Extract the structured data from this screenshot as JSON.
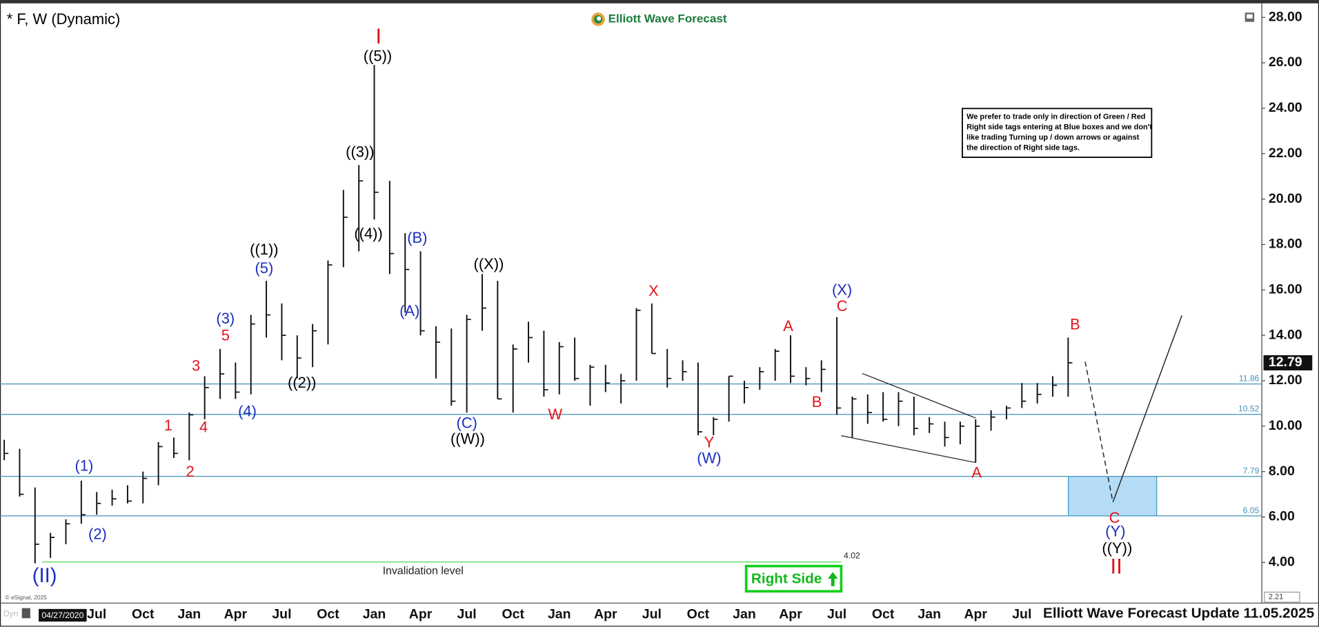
{
  "chart_data": {
    "type": "ohlc",
    "title": "* F, W (Dynamic)",
    "logo": "Elliott Wave Forecast",
    "note": [
      "We prefer to trade only in direction of Green / Red",
      "Right side tags entering at Blue boxes and we don't",
      "like trading Turning up / down arrows or against",
      "the direction of Right side tags."
    ],
    "categories": [
      null,
      null,
      null,
      null,
      null,
      null,
      "Jul",
      null,
      null,
      "Oct",
      null,
      null,
      "Jan",
      null,
      null,
      "Apr",
      null,
      null,
      "Jul",
      null,
      null,
      "Oct",
      null,
      null,
      "Jan",
      null,
      null,
      "Apr",
      null,
      null,
      "Jul",
      null,
      null,
      "Oct",
      null,
      null,
      "Jan",
      null,
      null,
      "Apr",
      null,
      null,
      "Jul",
      null,
      null,
      "Oct",
      null,
      null,
      "Jan",
      null,
      null,
      "Apr",
      null,
      null,
      "Jul",
      null,
      null,
      "Oct",
      null,
      null,
      "Jan",
      null,
      null,
      "Apr",
      null,
      null,
      "Jul",
      null,
      null,
      null,
      null,
      null,
      null,
      null,
      null,
      null,
      null,
      null,
      null,
      null,
      null
    ],
    "high": [
      9.4,
      9.0,
      7.3,
      5.3,
      5.9,
      7.6,
      7.1,
      7.2,
      7.4,
      8.0,
      9.3,
      9.5,
      10.6,
      12.2,
      13.4,
      12.8,
      14.9,
      16.4,
      15.4,
      14.0,
      14.5,
      17.3,
      20.4,
      21.5,
      25.9,
      20.8,
      18.5,
      17.7,
      14.4,
      14.3,
      14.9,
      16.7,
      16.4,
      13.6,
      14.6,
      14.2,
      13.7,
      13.9,
      12.7,
      12.7,
      12.3,
      15.2,
      15.4,
      13.4,
      12.9,
      12.8,
      10.4,
      12.2,
      12.0,
      12.6,
      13.4,
      14.0,
      12.6,
      12.9,
      14.8,
      11.3,
      11.4,
      11.5,
      11.5,
      11.3,
      10.4,
      10.2,
      10.2,
      10.3,
      10.7,
      10.9,
      11.9,
      11.9,
      12.2,
      13.9,
      null,
      null,
      null,
      null,
      null,
      null,
      null,
      null,
      null,
      null,
      null
    ],
    "low": [
      8.5,
      6.9,
      3.96,
      4.2,
      4.8,
      5.7,
      6.1,
      6.5,
      6.6,
      6.6,
      7.4,
      8.6,
      8.5,
      10.3,
      11.2,
      11.2,
      11.4,
      13.9,
      12.9,
      12.1,
      12.6,
      13.6,
      17.0,
      17.7,
      19.1,
      16.7,
      15.0,
      14.0,
      12.1,
      10.9,
      10.6,
      14.2,
      11.2,
      10.6,
      12.8,
      11.3,
      11.4,
      12.0,
      10.9,
      11.5,
      11.0,
      12.0,
      13.2,
      11.7,
      12.0,
      9.6,
      9.6,
      10.2,
      11.0,
      11.6,
      12.0,
      11.9,
      11.8,
      11.5,
      10.5,
      9.5,
      10.1,
      10.2,
      10.0,
      9.6,
      9.7,
      9.1,
      9.2,
      8.4,
      9.8,
      10.3,
      10.8,
      11.0,
      11.3,
      11.3,
      null,
      null,
      null,
      null,
      null,
      null,
      null,
      null,
      null,
      null,
      null
    ],
    "close": [
      8.8,
      7.0,
      4.8,
      5.1,
      5.7,
      6.1,
      6.6,
      6.8,
      6.7,
      7.7,
      9.1,
      8.8,
      10.5,
      11.7,
      12.3,
      11.5,
      14.5,
      14.9,
      14.0,
      13.0,
      14.2,
      17.1,
      19.2,
      20.8,
      20.3,
      17.6,
      16.9,
      14.2,
      13.7,
      11.1,
      14.7,
      15.2,
      11.2,
      13.4,
      13.9,
      11.6,
      13.5,
      12.1,
      12.6,
      11.9,
      12.0,
      15.1,
      13.2,
      12.1,
      12.4,
      9.75,
      10.3,
      12.2,
      11.7,
      12.4,
      13.3,
      12.2,
      12.1,
      12.5,
      10.8,
      11.2,
      10.6,
      10.3,
      11.1,
      9.9,
      10.1,
      9.5,
      10.0,
      10.0,
      10.4,
      10.8,
      11.1,
      11.4,
      11.8,
      12.79,
      null,
      null,
      null,
      null,
      null,
      null,
      null,
      null,
      null,
      null,
      null
    ],
    "color": "#111111",
    "ylim": [
      2.21,
      28.44
    ],
    "yticks": [
      {
        "value": 4,
        "label": "4.00"
      },
      {
        "value": 6,
        "label": "6.00"
      },
      {
        "value": 8,
        "label": "8.00"
      },
      {
        "value": 10,
        "label": "10.00"
      },
      {
        "value": 12,
        "label": "12.00"
      },
      {
        "value": 14,
        "label": "14.00"
      },
      {
        "value": 16,
        "label": "16.00"
      },
      {
        "value": 18,
        "label": "18.00"
      },
      {
        "value": 20,
        "label": "20.00"
      },
      {
        "value": 22,
        "label": "22.00"
      },
      {
        "value": 24,
        "label": "24.00"
      },
      {
        "value": 26,
        "label": "26.00"
      },
      {
        "value": 28,
        "label": "28.00"
      }
    ],
    "levels": [
      11.86,
      10.52,
      7.79,
      6.05
    ],
    "level_color": "#3f93bd",
    "invalidation_level": 4.02,
    "invalidation_label": "Invalidation level",
    "wave_labels": [
      {
        "text": "I",
        "color": "#e0161c"
      },
      {
        "text": "((5))",
        "color": "#000000"
      },
      {
        "text": "((3))",
        "color": "#000000"
      },
      {
        "text": "((4))",
        "color": "#000000"
      },
      {
        "text": "((1))",
        "color": "#000000"
      },
      {
        "text": "(5)",
        "color": "#1a2fc0"
      },
      {
        "text": "(3)",
        "color": "#1a2fc0"
      },
      {
        "text": "5",
        "color": "#e0161c"
      },
      {
        "text": "3",
        "color": "#e0161c"
      },
      {
        "text": "4",
        "color": "#e0161c"
      },
      {
        "text": "(4)",
        "color": "#1a2fc0"
      },
      {
        "text": "((2))",
        "color": "#000000"
      },
      {
        "text": "1",
        "color": "#e0161c"
      },
      {
        "text": "2",
        "color": "#e0161c"
      },
      {
        "text": "(1)",
        "color": "#1a2fc0"
      },
      {
        "text": "(2)",
        "color": "#1a2fc0"
      },
      {
        "text": "(II)",
        "color": "#1a2fc0"
      },
      {
        "text": "(B)",
        "color": "#1a2fc0"
      },
      {
        "text": "(A)",
        "color": "#1a2fc0"
      },
      {
        "text": "((X))",
        "color": "#000000"
      },
      {
        "text": "(C)",
        "color": "#1a2fc0"
      },
      {
        "text": "((W))",
        "color": "#000000"
      },
      {
        "text": "W",
        "color": "#e0161c"
      },
      {
        "text": "X",
        "color": "#e0161c"
      },
      {
        "text": "Y",
        "color": "#e0161c"
      },
      {
        "text": "(W)",
        "color": "#1a2fc0"
      },
      {
        "text": "A",
        "color": "#e0161c"
      },
      {
        "text": "B",
        "color": "#e0161c"
      },
      {
        "text": "(X)",
        "color": "#1a2fc0"
      },
      {
        "text": "C",
        "color": "#e0161c"
      },
      {
        "text": "A",
        "color": "#e0161c"
      },
      {
        "text": "B",
        "color": "#e0161c"
      },
      {
        "text": "C",
        "color": "#e0161c"
      },
      {
        "text": "(Y)",
        "color": "#1a2fc0"
      },
      {
        "text": "((Y))",
        "color": "#000000"
      },
      {
        "text": "II",
        "color": "#e0161c"
      }
    ],
    "right_side_tag": "Right Side",
    "footer": "Elliott Wave Forecast Update 11.05.2025",
    "cursor_date": "04/27/2020",
    "source": "© eSignal, 2025",
    "corner_label": "Dyn"
  }
}
